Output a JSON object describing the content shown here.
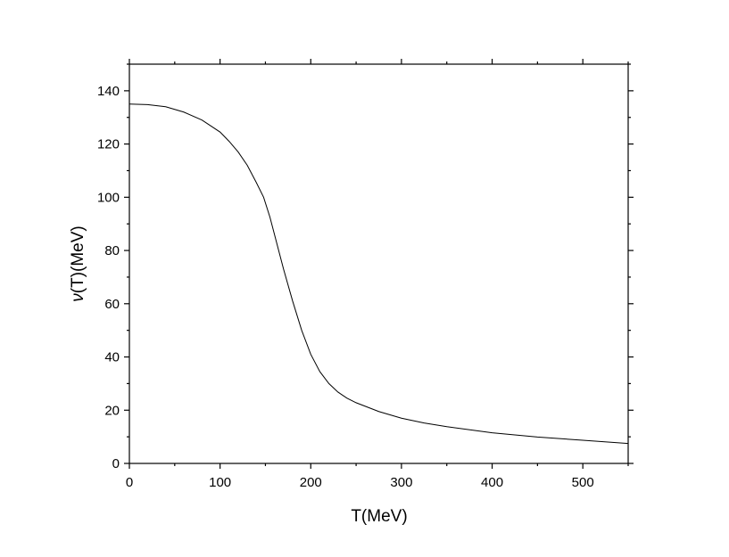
{
  "chart_data": {
    "type": "line",
    "title": "",
    "xlabel": "T(MeV)",
    "ylabel_symbol": "ν",
    "ylabel_rest": "(T)(MeV)",
    "xlim": [
      0,
      550
    ],
    "ylim": [
      0,
      150
    ],
    "x_ticks": [
      0,
      100,
      200,
      300,
      400,
      500
    ],
    "x_tick_labels": [
      "0",
      "100",
      "200",
      "300",
      "400",
      "500"
    ],
    "x_minor_step": 50,
    "y_ticks": [
      0,
      20,
      40,
      60,
      80,
      100,
      120,
      140
    ],
    "y_tick_labels": [
      "0",
      "20",
      "40",
      "60",
      "80",
      "100",
      "120",
      "140"
    ],
    "y_minor_step": 10,
    "grid": false,
    "legend": "none",
    "line_color": "#000000",
    "series": [
      {
        "x": [
          0,
          20,
          40,
          60,
          80,
          100,
          110,
          120,
          130,
          140,
          148,
          155,
          160,
          170,
          180,
          190,
          200,
          210,
          220,
          230,
          240,
          250,
          275,
          300,
          325,
          350,
          400,
          450,
          500,
          550
        ],
        "y": [
          135,
          134.8,
          134,
          132,
          129,
          124.5,
          121,
          117,
          112,
          105.5,
          100,
          92.5,
          86,
          73,
          61,
          50,
          41,
          34.5,
          30,
          26.8,
          24.5,
          22.8,
          19.5,
          17,
          15.2,
          13.8,
          11.5,
          9.9,
          8.7,
          7.5
        ]
      }
    ]
  }
}
